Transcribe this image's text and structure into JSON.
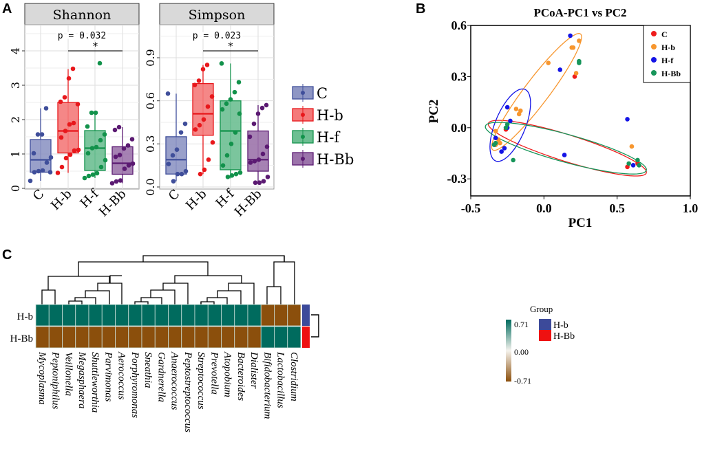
{
  "panels": {
    "a": "A",
    "b": "B",
    "c": "C"
  },
  "chart_data": [
    {
      "type": "box",
      "title": "Shannon",
      "annotation": "p = 0.032",
      "sig": "*",
      "ylim": [
        0,
        4.6
      ],
      "yticks": [
        0,
        1,
        2,
        3,
        4
      ],
      "categories": [
        "C",
        "H-b",
        "H-f",
        "H-Bb"
      ],
      "boxes": [
        {
          "q1": 0.47,
          "median": 0.83,
          "q3": 1.42,
          "min": 0.22,
          "max": 2.33
        },
        {
          "q1": 1.03,
          "median": 1.67,
          "q3": 2.5,
          "min": 0.45,
          "max": 3.47
        },
        {
          "q1": 0.52,
          "median": 1.17,
          "q3": 1.68,
          "min": 0.3,
          "max": 2.2
        },
        {
          "q1": 0.41,
          "median": 0.73,
          "q3": 1.21,
          "min": 0.15,
          "max": 1.78
        }
      ],
      "points": [
        [
          0.22,
          0.47,
          0.5,
          0.52,
          0.75,
          0.9,
          1.02,
          1.57,
          1.57,
          2.33,
          0.47
        ],
        [
          0.45,
          0.62,
          0.88,
          0.98,
          1.1,
          1.12,
          1.48,
          1.67,
          1.86,
          1.9,
          2.45,
          2.52,
          2.65,
          3.2,
          3.48
        ],
        [
          0.3,
          0.36,
          0.4,
          0.44,
          0.62,
          0.82,
          1.02,
          1.17,
          1.2,
          1.4,
          1.57,
          1.8,
          2.2,
          2.2,
          3.64
        ],
        [
          0.15,
          0.2,
          0.23,
          0.57,
          0.67,
          0.72,
          0.92,
          0.97,
          1.16,
          1.25,
          1.43,
          1.7,
          1.78
        ]
      ]
    },
    {
      "type": "box",
      "title": "Simpson",
      "annotation": "p = 0.023",
      "sig": "*",
      "ylim": [
        -0.01,
        1.1
      ],
      "yticks": [
        "0.0",
        "0.3",
        "0.6",
        "0.9"
      ],
      "categories": [
        "C",
        "H-b",
        "H-f",
        "H-Bb"
      ],
      "boxes": [
        {
          "q1": 0.09,
          "median": 0.19,
          "q3": 0.35,
          "min": 0.04,
          "max": 0.65
        },
        {
          "q1": 0.36,
          "median": 0.51,
          "q3": 0.72,
          "min": 0.09,
          "max": 0.85
        },
        {
          "q1": 0.12,
          "median": 0.39,
          "q3": 0.6,
          "min": 0.06,
          "max": 0.86
        },
        {
          "q1": 0.11,
          "median": 0.19,
          "q3": 0.39,
          "min": 0.03,
          "max": 0.57
        }
      ],
      "points": [
        [
          0.04,
          0.09,
          0.09,
          0.11,
          0.16,
          0.22,
          0.26,
          0.38,
          0.44,
          0.65
        ],
        [
          0.09,
          0.12,
          0.19,
          0.31,
          0.4,
          0.43,
          0.47,
          0.56,
          0.63,
          0.71,
          0.74,
          0.82,
          0.85
        ],
        [
          0.07,
          0.08,
          0.09,
          0.1,
          0.15,
          0.22,
          0.3,
          0.38,
          0.51,
          0.54,
          0.58,
          0.61,
          0.66,
          0.73,
          0.86
        ],
        [
          0.03,
          0.03,
          0.04,
          0.07,
          0.17,
          0.18,
          0.19,
          0.23,
          0.28,
          0.35,
          0.44,
          0.51,
          0.55,
          0.57
        ]
      ]
    },
    {
      "type": "scatter",
      "title": "PCoA-PC1 vs  PC2",
      "xlabel": "PC1",
      "ylabel": "PC2",
      "xlim": [
        -0.5,
        1.0
      ],
      "ylim": [
        -0.4,
        0.6
      ],
      "xticks": [
        "-0.5",
        "0.0",
        "0.5",
        "1.0"
      ],
      "yticks": [
        "-0.3",
        "0.0",
        "0.3",
        "0.6"
      ],
      "legend": "top-right",
      "series": [
        {
          "name": "C",
          "color": "#ee1c1c",
          "points": [
            [
              -0.26,
              -0.01
            ],
            [
              0.21,
              0.3
            ],
            [
              0.57,
              -0.23
            ],
            [
              0.64,
              -0.21
            ],
            [
              -0.33,
              -0.1
            ]
          ],
          "ellipse": {
            "center": [
              0.16,
              -0.12
            ],
            "a": [
              0.54,
              -0.145
            ],
            "b": [
              0.025,
              0.075
            ]
          }
        },
        {
          "name": "H-b",
          "color": "#f7962e",
          "points": [
            [
              0.03,
              0.38
            ],
            [
              0.19,
              0.47
            ],
            [
              0.2,
              0.47
            ],
            [
              0.24,
              0.51
            ],
            [
              0.22,
              0.32
            ],
            [
              -0.19,
              0.11
            ],
            [
              -0.16,
              0.1
            ],
            [
              -0.17,
              0.08
            ],
            [
              -0.33,
              -0.02
            ],
            [
              -0.31,
              -0.07
            ],
            [
              -0.3,
              -0.09
            ],
            [
              0.6,
              -0.11
            ],
            [
              -0.33,
              -0.1
            ]
          ],
          "ellipse": {
            "center": [
              -0.05,
              0.21
            ],
            "a": [
              0.3,
              0.34
            ],
            "b": [
              0.067,
              -0.044
            ]
          }
        },
        {
          "name": "H-f",
          "color": "#1414e6",
          "points": [
            [
              0.18,
              0.54
            ],
            [
              0.11,
              0.34
            ],
            [
              -0.25,
              0.12
            ],
            [
              -0.23,
              0.04
            ],
            [
              -0.25,
              0.0
            ],
            [
              -0.33,
              -0.06
            ],
            [
              -0.29,
              -0.14
            ],
            [
              -0.27,
              -0.12
            ],
            [
              0.14,
              -0.16
            ],
            [
              0.57,
              0.05
            ],
            [
              0.61,
              -0.22
            ],
            [
              -0.34,
              -0.1
            ]
          ],
          "ellipse": {
            "center": [
              -0.23,
              0.015
            ],
            "a": [
              0.1,
              0.21
            ],
            "b": [
              0.096,
              -0.033
            ]
          }
        },
        {
          "name": "H-Bb",
          "color": "#17955a",
          "points": [
            [
              0.24,
              0.39
            ],
            [
              0.24,
              0.38
            ],
            [
              -0.26,
              0.0
            ],
            [
              -0.25,
              0.02
            ],
            [
              -0.33,
              -0.09
            ],
            [
              -0.34,
              -0.1
            ],
            [
              -0.21,
              -0.19
            ],
            [
              0.58,
              -0.21
            ],
            [
              0.64,
              -0.19
            ],
            [
              0.65,
              -0.22
            ]
          ],
          "ellipse": {
            "center": [
              0.15,
              -0.12
            ],
            "a": [
              0.55,
              -0.13
            ],
            "b": [
              0.027,
              0.078
            ]
          }
        }
      ]
    },
    {
      "type": "heatmap",
      "rows": [
        "H-b",
        "H-Bb"
      ],
      "columns": [
        "Mycoplasma",
        "Peptoniphilus",
        "Veillonella",
        "Megasphaera",
        "Shuttleworthia",
        "Parvimonas",
        "Aerococcus",
        "Porphyromonas",
        "Sneathia",
        "Gardnerella",
        "Anaerococcus",
        "Peptostreptococcus",
        "Streptococcus",
        "Prevotella",
        "Atopobium",
        "Bacteroides",
        "Dialister",
        "Bifidobacterium",
        "Lactobacillus",
        "Clostridium"
      ],
      "values": [
        [
          0.71,
          0.71,
          0.71,
          0.71,
          0.71,
          0.71,
          0.71,
          0.71,
          0.71,
          0.71,
          0.71,
          0.71,
          0.71,
          0.71,
          0.71,
          0.71,
          0.71,
          -0.71,
          -0.71,
          -0.71
        ],
        [
          -0.71,
          -0.71,
          -0.71,
          -0.71,
          -0.71,
          -0.71,
          -0.71,
          -0.71,
          -0.71,
          -0.71,
          -0.71,
          -0.71,
          -0.71,
          -0.71,
          -0.71,
          -0.71,
          -0.71,
          0.71,
          0.71,
          0.71
        ]
      ],
      "scale": {
        "max": "0.71",
        "mid": "0.00",
        "min": "-0.71",
        "high_color": "#006b5e",
        "low_color": "#8b4f0c"
      },
      "group_legend": {
        "title": "Group",
        "items": [
          {
            "name": "H-b",
            "color": "#3c4a9a"
          },
          {
            "name": "H-Bb",
            "color": "#ee1111"
          }
        ]
      }
    }
  ],
  "legend_a": [
    {
      "name": "C",
      "fill": "#8e96c4",
      "stroke": "#3f4e9a"
    },
    {
      "name": "H-b",
      "fill": "#f47a7a",
      "stroke": "#e8171b"
    },
    {
      "name": "H-f",
      "fill": "#6dbf92",
      "stroke": "#12924b"
    },
    {
      "name": "H-Bb",
      "fill": "#9c74ab",
      "stroke": "#5b1a72"
    }
  ]
}
